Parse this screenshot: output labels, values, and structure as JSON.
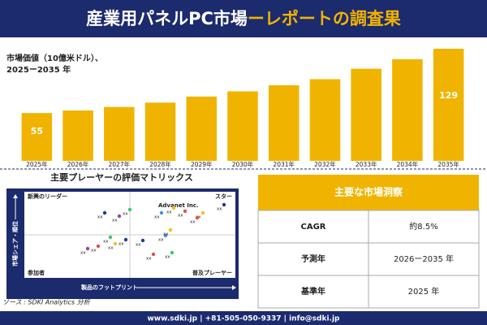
{
  "header": {
    "title_main": "産業用パネルPC市場",
    "title_highlight": "ーレポートの調査果"
  },
  "chart_data": {
    "type": "bar",
    "subtitle": [
      "市場価値（10億米ドル）、",
      "2025ー2035 年"
    ],
    "categories": [
      "2025年",
      "2026年",
      "2027年",
      "2028年",
      "2029年",
      "2030年",
      "2031年",
      "2032年",
      "2033年",
      "2034年",
      "2035年"
    ],
    "values": [
      55,
      58,
      62,
      67,
      74,
      80,
      87,
      94,
      106,
      117,
      129
    ],
    "color": "#f0b400"
  },
  "matrix": {
    "title": "主要プレーヤーの評価マトリックス",
    "quadrants": [
      "新興のリーダー",
      "スター",
      "参加者",
      "普及プレーヤー"
    ],
    "highlight": "Advanet Inc.",
    "y_axis": "市場シェア・順位",
    "x_axis": "製品のフットプリント",
    "points": [
      {
        "label": "xx",
        "color": "#1f3a93"
      },
      {
        "label": "xx",
        "color": "#f0c020"
      },
      {
        "label": "xx",
        "color": "#e05050"
      },
      {
        "label": "xx",
        "color": "#8e44ad"
      },
      {
        "label": "xx",
        "color": "#2ecc71"
      },
      {
        "label": "xx",
        "color": "#1f3a93"
      },
      {
        "label": "xx",
        "color": "#f0c020"
      },
      {
        "label": "xx",
        "color": "#3498db"
      },
      {
        "label": "xx",
        "color": "#e05050"
      },
      {
        "label": "xx",
        "color": "#1f3a93"
      },
      {
        "label": "xx",
        "color": "#f0c020"
      },
      {
        "label": "xx",
        "color": "#2ecc71"
      },
      {
        "label": "xx",
        "color": "#e05050"
      },
      {
        "label": "xx",
        "color": "#8e44ad"
      },
      {
        "label": "xx",
        "color": "#3498db"
      },
      {
        "label": "xx",
        "color": "#f0c020"
      },
      {
        "label": "xx",
        "color": "#1f3a93"
      },
      {
        "label": "xx",
        "color": "#e05050"
      },
      {
        "label": "xx",
        "color": "#2ecc71"
      }
    ]
  },
  "table": {
    "header": "主要な市場洞察",
    "rows": [
      [
        "CAGR",
        "約8.5%"
      ],
      [
        "予測年",
        "2026ー2035 年"
      ],
      [
        "基準年",
        "2025 年"
      ]
    ]
  },
  "source": "ソース : SDKI Analytics 分析",
  "footer": "www.sdki.jp | +81-505-050-9337 | info@sdki.jp"
}
